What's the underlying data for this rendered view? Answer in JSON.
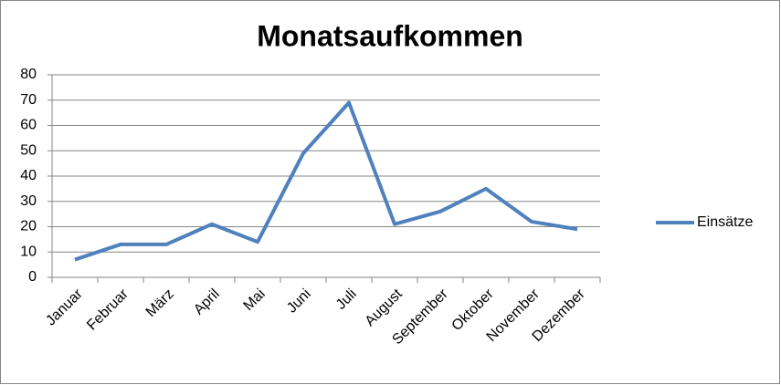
{
  "chart_data": {
    "type": "line",
    "title": "Monatsaufkommen",
    "categories": [
      "Januar",
      "Februar",
      "März",
      "April",
      "Mai",
      "Juni",
      "Juli",
      "August",
      "September",
      "Oktober",
      "November",
      "Dezember"
    ],
    "series": [
      {
        "name": "Einsätze",
        "color": "#4f81bd",
        "values": [
          7,
          13,
          13,
          21,
          14,
          49,
          69,
          21,
          26,
          35,
          22,
          19
        ]
      }
    ],
    "ylim": [
      0,
      80
    ],
    "yticks": [
      0,
      10,
      20,
      30,
      40,
      50,
      60,
      70,
      80
    ],
    "grid": true,
    "legend": "right"
  }
}
